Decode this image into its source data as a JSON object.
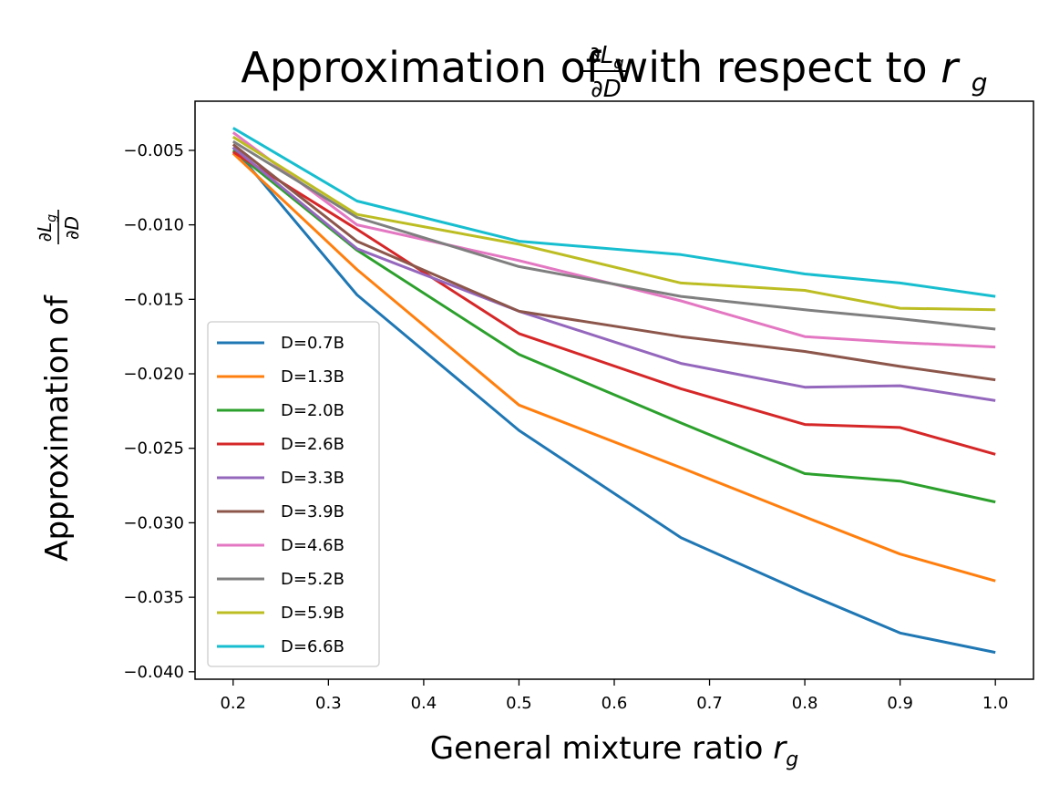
{
  "chart_data": {
    "type": "line",
    "title": {
      "prefix": "Approximation of ",
      "frac_num_main": "∂L",
      "frac_num_sub": "g",
      "frac_den": "∂D",
      "suffix": " with respect to ",
      "var_main": "r",
      "var_sub": "g"
    },
    "xlabel": {
      "text": "General mixture ratio ",
      "var_main": "r",
      "var_sub": "g"
    },
    "ylabel": {
      "prefix": "Approximation of ",
      "frac_num_main": "∂L",
      "frac_num_sub": "g",
      "frac_den": "∂D"
    },
    "xlim": [
      0.16,
      1.04
    ],
    "ylim": [
      -0.0405,
      -0.0017
    ],
    "xticks": [
      0.2,
      0.3,
      0.4,
      0.5,
      0.6,
      0.7,
      0.8,
      0.9,
      1.0
    ],
    "xtick_labels": [
      "0.2",
      "0.3",
      "0.4",
      "0.5",
      "0.6",
      "0.7",
      "0.8",
      "0.9",
      "1.0"
    ],
    "yticks": [
      -0.005,
      -0.01,
      -0.015,
      -0.02,
      -0.025,
      -0.03,
      -0.035,
      -0.04
    ],
    "ytick_labels": [
      "−0.005",
      "−0.010",
      "−0.015",
      "−0.020",
      "−0.025",
      "−0.030",
      "−0.035",
      "−0.040"
    ],
    "grid": false,
    "legend_position": "center-left",
    "x": [
      0.2,
      0.33,
      0.5,
      0.67,
      0.8,
      0.9,
      1.0
    ],
    "series": [
      {
        "name": "D=0.7B",
        "color": "#1f77b4",
        "values": [
          -0.0048,
          -0.0147,
          -0.0238,
          -0.031,
          -0.0347,
          -0.0374,
          -0.0387
        ]
      },
      {
        "name": "D=1.3B",
        "color": "#ff7f0e",
        "values": [
          -0.0052,
          -0.013,
          -0.0221,
          -0.0263,
          -0.0296,
          -0.0321,
          -0.0339
        ]
      },
      {
        "name": "D=2.0B",
        "color": "#2ca02c",
        "values": [
          -0.005,
          -0.0117,
          -0.0187,
          -0.0233,
          -0.0267,
          -0.0272,
          -0.0286
        ]
      },
      {
        "name": "D=2.6B",
        "color": "#d62728",
        "values": [
          -0.0051,
          -0.0103,
          -0.0173,
          -0.021,
          -0.0234,
          -0.0236,
          -0.0254
        ]
      },
      {
        "name": "D=3.3B",
        "color": "#9467bd",
        "values": [
          -0.0048,
          -0.0116,
          -0.0158,
          -0.0193,
          -0.0209,
          -0.0208,
          -0.0218
        ]
      },
      {
        "name": "D=3.9B",
        "color": "#8c564b",
        "values": [
          -0.0046,
          -0.0111,
          -0.0158,
          -0.0175,
          -0.0185,
          -0.0195,
          -0.0204
        ]
      },
      {
        "name": "D=4.6B",
        "color": "#e377c2",
        "values": [
          -0.0038,
          -0.01,
          -0.0124,
          -0.0151,
          -0.0175,
          -0.0179,
          -0.0182
        ]
      },
      {
        "name": "D=5.2B",
        "color": "#7f7f7f",
        "values": [
          -0.0044,
          -0.0095,
          -0.0128,
          -0.0148,
          -0.0157,
          -0.0163,
          -0.017
        ]
      },
      {
        "name": "D=5.9B",
        "color": "#bcbd22",
        "values": [
          -0.0041,
          -0.0093,
          -0.0113,
          -0.0139,
          -0.0144,
          -0.0156,
          -0.0157
        ]
      },
      {
        "name": "D=6.6B",
        "color": "#17becf",
        "values": [
          -0.0035,
          -0.0084,
          -0.0111,
          -0.012,
          -0.0133,
          -0.0139,
          -0.0148
        ]
      }
    ]
  }
}
